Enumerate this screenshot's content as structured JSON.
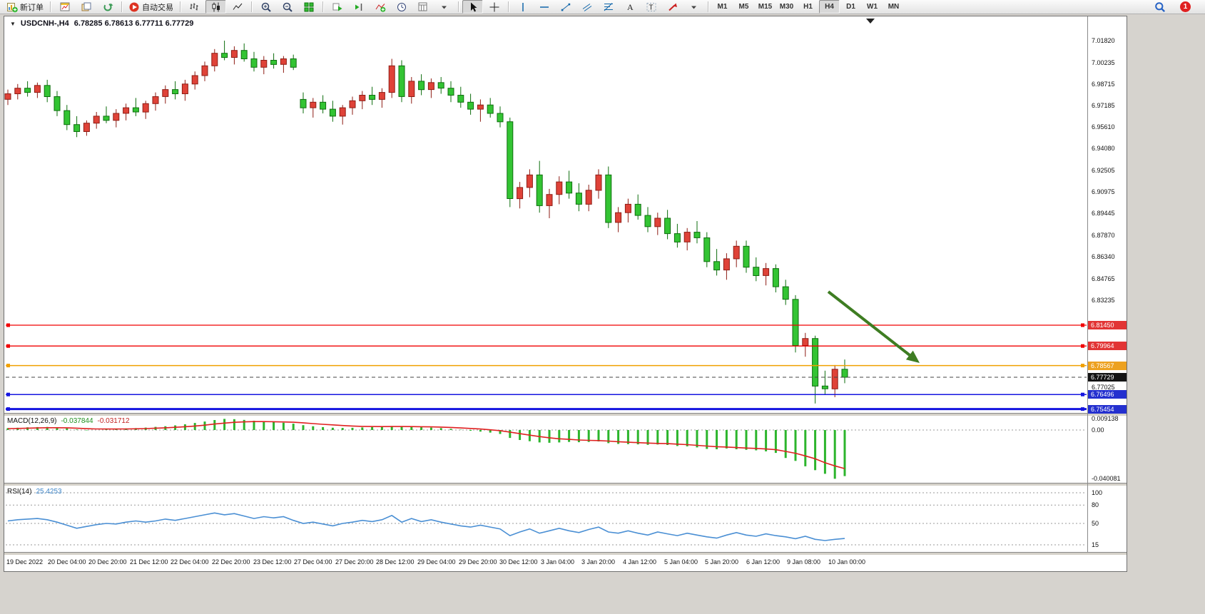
{
  "toolbar": {
    "groups": [
      {
        "name": "order",
        "buttons": [
          {
            "name": "new-order",
            "label": "新订单",
            "icon": "new-order"
          }
        ]
      },
      {
        "name": "windows",
        "buttons": [
          {
            "name": "new-chart",
            "icon": "new-chart"
          },
          {
            "name": "profiles",
            "icon": "profiles"
          },
          {
            "name": "refresh",
            "icon": "refresh"
          }
        ]
      },
      {
        "name": "trading",
        "buttons": [
          {
            "name": "auto-trading",
            "label": "自动交易",
            "icon": "auto-trading"
          }
        ]
      },
      {
        "name": "chart-type",
        "buttons": [
          {
            "name": "bar-chart",
            "icon": "bar-chart"
          },
          {
            "name": "candlestick-chart",
            "icon": "candle-chart",
            "active": true
          },
          {
            "name": "line-chart",
            "icon": "line-chart"
          }
        ]
      },
      {
        "name": "zoom",
        "buttons": [
          {
            "name": "zoom-in",
            "icon": "zoom-in"
          },
          {
            "name": "zoom-out",
            "icon": "zoom-out"
          },
          {
            "name": "tile-windows",
            "icon": "tile-windows"
          }
        ]
      },
      {
        "name": "chart-tools",
        "buttons": [
          {
            "name": "auto-scroll",
            "icon": "auto-scroll"
          },
          {
            "name": "chart-shift",
            "icon": "chart-shift"
          },
          {
            "name": "indicators",
            "icon": "indicators"
          },
          {
            "name": "periods",
            "icon": "periods"
          },
          {
            "name": "templates",
            "icon": "templates"
          },
          {
            "name": "templates-dropdown",
            "icon": "dropdown"
          }
        ]
      },
      {
        "name": "pointer",
        "buttons": [
          {
            "name": "cursor",
            "icon": "cursor",
            "active": true
          },
          {
            "name": "crosshair",
            "icon": "crosshair"
          }
        ]
      },
      {
        "name": "objects",
        "buttons": [
          {
            "name": "vertical-line",
            "icon": "vline"
          },
          {
            "name": "horizontal-line",
            "icon": "hline"
          },
          {
            "name": "trendline",
            "icon": "trendline"
          },
          {
            "name": "equidistant-channel",
            "icon": "channel"
          },
          {
            "name": "fibonacci",
            "icon": "fibonacci"
          },
          {
            "name": "text",
            "icon": "text"
          },
          {
            "name": "text-label",
            "icon": "label"
          },
          {
            "name": "arrows",
            "icon": "shapes"
          },
          {
            "name": "arrows-dropdown",
            "icon": "dropdown"
          }
        ]
      },
      {
        "name": "timeframes",
        "buttons": [
          {
            "name": "tf-m1",
            "label": "M1"
          },
          {
            "name": "tf-m5",
            "label": "M5"
          },
          {
            "name": "tf-m15",
            "label": "M15"
          },
          {
            "name": "tf-m30",
            "label": "M30"
          },
          {
            "name": "tf-h1",
            "label": "H1"
          },
          {
            "name": "tf-h4",
            "label": "H4",
            "active": true
          },
          {
            "name": "tf-d1",
            "label": "D1"
          },
          {
            "name": "tf-w1",
            "label": "W1"
          },
          {
            "name": "tf-mn",
            "label": "MN"
          }
        ]
      }
    ],
    "right": [
      {
        "name": "search",
        "icon": "magnifier"
      },
      {
        "name": "notifications",
        "icon": "notification",
        "badge": "1"
      }
    ]
  },
  "chart": {
    "title_symbol": "USDCNH-,H4",
    "title_ohlc": "6.78285 6.78613 6.77711 6.77729",
    "price_axis_labels": [
      "7.01820",
      "7.00235",
      "6.98715",
      "6.97185",
      "6.95610",
      "6.94080",
      "6.92505",
      "6.90975",
      "6.89445",
      "6.87870",
      "6.86340",
      "6.84765",
      "6.83235",
      "6.77025"
    ],
    "time_axis_labels": [
      "19 Dec 2022",
      "20 Dec 04:00",
      "20 Dec 20:00",
      "21 Dec 12:00",
      "22 Dec 04:00",
      "22 Dec 20:00",
      "23 Dec 12:00",
      "27 Dec 04:00",
      "27 Dec 20:00",
      "28 Dec 12:00",
      "29 Dec 04:00",
      "29 Dec 20:00",
      "30 Dec 12:00",
      "3 Jan 04:00",
      "3 Jan 20:00",
      "4 Jan 12:00",
      "5 Jan 04:00",
      "5 Jan 20:00",
      "6 Jan 12:00",
      "9 Jan 08:00",
      "10 Jan 00:00"
    ],
    "lines": [
      {
        "price": 6.8145,
        "label": "6.81450",
        "color": "#f00000",
        "badge": "#e23434",
        "width": 1.3,
        "style": "solid",
        "handles": true
      },
      {
        "price": 6.79964,
        "label": "6.79964",
        "color": "#f00000",
        "badge": "#e23434",
        "width": 1.3,
        "style": "solid",
        "handles": true
      },
      {
        "price": 6.78567,
        "label": "6.78567",
        "color": "#f0a000",
        "bad ge": "#eda11f",
        "badge": "#eda11f",
        "width": 1.5,
        "style": "solid",
        "handles": true
      },
      {
        "price": 6.77729,
        "label": "6.77729",
        "color": "#444444",
        "badge": "#141414",
        "width": 1,
        "style": "dash",
        "handles": false
      },
      {
        "price": 6.76496,
        "label": "6.76496",
        "color": "#1515e0",
        "badge": "#2430cf",
        "width": 1.5,
        "style": "solid",
        "handles": true
      },
      {
        "price": 6.75454,
        "label": "6.75454",
        "color": "#1515e0",
        "badge": "#2430cf",
        "width": 3,
        "style": "solid",
        "handles": true
      }
    ],
    "colors": {
      "candle_up": "#df4238",
      "candle_up_border": "#8e1d15",
      "candle_down": "#33c433",
      "candle_down_border": "#0e6e0e",
      "arrow": "#3e7d22",
      "macd_hist": "#2cb52c",
      "macd_signal": "#e02020",
      "rsi_line": "#4a8fd4"
    }
  },
  "macd": {
    "label": "MACD(12,26,9)",
    "value_main": "-0.037844",
    "value_signal": "-0.031712",
    "axis": [
      "0.009138",
      "0.00",
      "-0.040081"
    ]
  },
  "rsi": {
    "label": "RSI(14)",
    "value": "25.4253",
    "axis": [
      "100",
      "80",
      "50",
      "15"
    ],
    "levels": [
      100,
      80,
      50,
      15
    ]
  },
  "chart_data": {
    "type": "candlestick",
    "symbol": "USDCNH-",
    "timeframe": "H4",
    "ohlc_display": {
      "open": 6.78285,
      "high": 6.78613,
      "low": 6.77711,
      "close": 6.77729
    },
    "horizontal_levels": [
      6.8145,
      6.79964,
      6.78567,
      6.77729,
      6.76496,
      6.75454
    ],
    "candles": [
      [
        6.976,
        6.983,
        6.972,
        6.98
      ],
      [
        6.98,
        6.987,
        6.976,
        6.984
      ],
      [
        6.984,
        6.989,
        6.978,
        6.981
      ],
      [
        6.981,
        6.988,
        6.977,
        6.986
      ],
      [
        6.986,
        6.99,
        6.974,
        6.978
      ],
      [
        6.978,
        6.982,
        6.964,
        6.968
      ],
      [
        6.968,
        6.972,
        6.954,
        6.958
      ],
      [
        6.958,
        6.964,
        6.949,
        6.953
      ],
      [
        6.953,
        6.961,
        6.95,
        6.959
      ],
      [
        6.959,
        6.967,
        6.955,
        6.964
      ],
      [
        6.964,
        6.971,
        6.959,
        6.961
      ],
      [
        6.961,
        6.969,
        6.956,
        6.966
      ],
      [
        6.966,
        6.973,
        6.961,
        6.97
      ],
      [
        6.97,
        6.977,
        6.964,
        6.967
      ],
      [
        6.967,
        6.975,
        6.962,
        6.973
      ],
      [
        6.973,
        6.981,
        6.968,
        6.978
      ],
      [
        6.978,
        6.986,
        6.973,
        6.983
      ],
      [
        6.983,
        6.989,
        6.976,
        6.98
      ],
      [
        6.98,
        6.99,
        6.975,
        6.987
      ],
      [
        6.987,
        6.996,
        6.983,
        6.993
      ],
      [
        6.993,
        7.003,
        6.989,
        7.0
      ],
      [
        7.0,
        7.012,
        6.996,
        7.009
      ],
      [
        7.009,
        7.018,
        7.004,
        7.006
      ],
      [
        7.006,
        7.014,
        7.001,
        7.011
      ],
      [
        7.011,
        7.016,
        7.003,
        7.005
      ],
      [
        7.005,
        7.01,
        6.996,
        6.999
      ],
      [
        6.999,
        7.007,
        6.994,
        7.004
      ],
      [
        7.004,
        7.009,
        6.998,
        7.001
      ],
      [
        7.001,
        7.007,
        6.995,
        7.005
      ],
      [
        7.005,
        7.008,
        6.997,
        6.999
      ],
      [
        6.976,
        6.981,
        6.966,
        6.97
      ],
      [
        6.97,
        6.977,
        6.963,
        6.974
      ],
      [
        6.974,
        6.979,
        6.966,
        6.969
      ],
      [
        6.969,
        6.975,
        6.96,
        6.964
      ],
      [
        6.964,
        6.972,
        6.958,
        6.97
      ],
      [
        6.97,
        6.978,
        6.965,
        6.975
      ],
      [
        6.975,
        6.982,
        6.969,
        6.979
      ],
      [
        6.979,
        6.985,
        6.972,
        6.976
      ],
      [
        6.976,
        6.984,
        6.97,
        6.981
      ],
      [
        6.981,
        7.005,
        6.977,
        7.0
      ],
      [
        7.0,
        7.004,
        6.974,
        6.978
      ],
      [
        6.978,
        6.992,
        6.973,
        6.989
      ],
      [
        6.989,
        6.994,
        6.979,
        6.983
      ],
      [
        6.983,
        6.991,
        6.977,
        6.988
      ],
      [
        6.988,
        6.992,
        6.98,
        6.984
      ],
      [
        6.984,
        6.989,
        6.974,
        6.979
      ],
      [
        6.979,
        6.985,
        6.97,
        6.974
      ],
      [
        6.974,
        6.98,
        6.965,
        6.969
      ],
      [
        6.969,
        6.976,
        6.96,
        6.972
      ],
      [
        6.972,
        6.977,
        6.963,
        6.966
      ],
      [
        6.966,
        6.971,
        6.956,
        6.96
      ],
      [
        6.96,
        6.963,
        6.899,
        6.905
      ],
      [
        6.905,
        6.917,
        6.898,
        6.913
      ],
      [
        6.913,
        6.926,
        6.906,
        6.922
      ],
      [
        6.922,
        6.932,
        6.895,
        6.9
      ],
      [
        6.9,
        6.912,
        6.891,
        6.908
      ],
      [
        6.908,
        6.921,
        6.901,
        6.917
      ],
      [
        6.917,
        6.925,
        6.905,
        6.909
      ],
      [
        6.909,
        6.916,
        6.896,
        6.901
      ],
      [
        6.901,
        6.915,
        6.896,
        6.911
      ],
      [
        6.911,
        6.926,
        6.905,
        6.922
      ],
      [
        6.922,
        6.928,
        6.884,
        6.888
      ],
      [
        6.888,
        6.899,
        6.881,
        6.895
      ],
      [
        6.895,
        6.905,
        6.888,
        6.901
      ],
      [
        6.901,
        6.908,
        6.89,
        6.893
      ],
      [
        6.893,
        6.899,
        6.881,
        6.885
      ],
      [
        6.885,
        6.895,
        6.879,
        6.891
      ],
      [
        6.891,
        6.897,
        6.876,
        6.88
      ],
      [
        6.88,
        6.887,
        6.87,
        6.874
      ],
      [
        6.874,
        6.884,
        6.868,
        6.881
      ],
      [
        6.881,
        6.889,
        6.873,
        6.877
      ],
      [
        6.877,
        6.881,
        6.856,
        6.86
      ],
      [
        6.86,
        6.869,
        6.85,
        6.854
      ],
      [
        6.854,
        6.866,
        6.847,
        6.862
      ],
      [
        6.862,
        6.875,
        6.856,
        6.871
      ],
      [
        6.871,
        6.875,
        6.852,
        6.856
      ],
      [
        6.856,
        6.863,
        6.846,
        6.85
      ],
      [
        6.85,
        6.859,
        6.843,
        6.855
      ],
      [
        6.855,
        6.858,
        6.838,
        6.842
      ],
      [
        6.842,
        6.847,
        6.829,
        6.833
      ],
      [
        6.833,
        6.836,
        6.795,
        6.8
      ],
      [
        6.8,
        6.809,
        6.792,
        6.805
      ],
      [
        6.805,
        6.807,
        6.7585,
        6.771
      ],
      [
        6.771,
        6.782,
        6.765,
        6.769
      ],
      [
        6.769,
        6.786,
        6.763,
        6.783
      ],
      [
        6.783,
        6.79,
        6.773,
        6.77729
      ]
    ],
    "macd": {
      "histogram": [
        0.0016,
        0.0019,
        0.0022,
        0.0024,
        0.0025,
        0.0021,
        0.0014,
        0.0004,
        -0.0003,
        0.0,
        0.0005,
        0.0009,
        0.0013,
        0.0016,
        0.002,
        0.0026,
        0.0031,
        0.0038,
        0.0047,
        0.0058,
        0.007,
        0.0082,
        0.009138,
        0.0089,
        0.0083,
        0.0076,
        0.007,
        0.0065,
        0.006,
        0.0052,
        0.004,
        0.0031,
        0.0024,
        0.0019,
        0.0017,
        0.0018,
        0.0021,
        0.0024,
        0.0026,
        0.0033,
        0.0028,
        0.0027,
        0.0023,
        0.002,
        0.0016,
        0.001,
        0.0003,
        -0.0006,
        -0.0013,
        -0.0021,
        -0.0032,
        -0.0065,
        -0.0082,
        -0.0092,
        -0.0102,
        -0.0105,
        -0.0102,
        -0.0098,
        -0.01,
        -0.0098,
        -0.0094,
        -0.0108,
        -0.0114,
        -0.0116,
        -0.0118,
        -0.0122,
        -0.0119,
        -0.0123,
        -0.0131,
        -0.0134,
        -0.0143,
        -0.0155,
        -0.0158,
        -0.0152,
        -0.0158,
        -0.0163,
        -0.0167,
        -0.0175,
        -0.0188,
        -0.023,
        -0.0254,
        -0.0298,
        -0.033,
        -0.036,
        -0.040081,
        -0.037844
      ],
      "signal": [
        0.0012,
        0.0013,
        0.0015,
        0.0017,
        0.0019,
        0.0019,
        0.0018,
        0.0015,
        0.0011,
        0.0009,
        0.0008,
        0.0008,
        0.0009,
        0.001,
        0.0012,
        0.0015,
        0.0018,
        0.0022,
        0.0027,
        0.0033,
        0.004,
        0.0049,
        0.0057,
        0.0063,
        0.0067,
        0.0069,
        0.0069,
        0.0068,
        0.0066,
        0.0064,
        0.0059,
        0.0053,
        0.0047,
        0.0042,
        0.0037,
        0.0033,
        0.003,
        0.0029,
        0.0028,
        0.0029,
        0.0029,
        0.0028,
        0.0027,
        0.0026,
        0.0024,
        0.0021,
        0.0017,
        0.0013,
        0.0008,
        0.0002,
        -0.0005,
        -0.0017,
        -0.003,
        -0.0042,
        -0.0054,
        -0.0064,
        -0.0072,
        -0.0077,
        -0.0082,
        -0.0085,
        -0.0087,
        -0.0091,
        -0.0096,
        -0.01,
        -0.0104,
        -0.0107,
        -0.011,
        -0.0112,
        -0.0116,
        -0.012,
        -0.0126,
        -0.0132,
        -0.0137,
        -0.014,
        -0.0144,
        -0.0148,
        -0.0151,
        -0.0156,
        -0.0162,
        -0.0176,
        -0.0191,
        -0.0213,
        -0.0236,
        -0.0269,
        -0.0295,
        -0.031712
      ]
    },
    "rsi_values": [
      54,
      56,
      57,
      58,
      56,
      52,
      47,
      42,
      45,
      48,
      50,
      49,
      52,
      54,
      52,
      54,
      57,
      55,
      58,
      61,
      64,
      67,
      64,
      66,
      62,
      58,
      61,
      59,
      61,
      55,
      50,
      52,
      49,
      46,
      50,
      52,
      55,
      53,
      56,
      63,
      52,
      58,
      53,
      56,
      52,
      49,
      46,
      44,
      47,
      44,
      41,
      30,
      36,
      41,
      34,
      38,
      42,
      38,
      35,
      40,
      44,
      36,
      34,
      38,
      34,
      31,
      36,
      33,
      30,
      34,
      31,
      28,
      26,
      31,
      35,
      31,
      29,
      33,
      30,
      28,
      25,
      29,
      24,
      22,
      24,
      25.4253
    ]
  }
}
